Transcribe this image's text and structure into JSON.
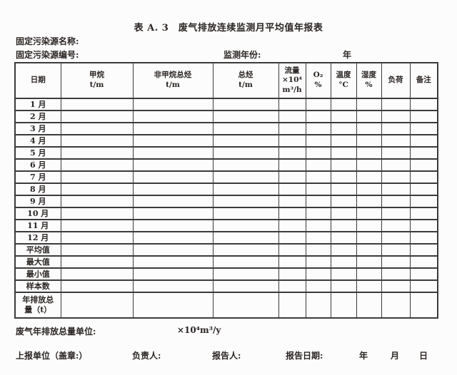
{
  "title": "表 A. 3　废气排放连续监测月平均值年报表",
  "meta": {
    "source_name_label": "固定污染源名称:",
    "source_code_label": "固定污染源编号:",
    "monitor_year_label": "监测年份:",
    "year_unit": "年"
  },
  "table": {
    "header": [
      "日期",
      "甲烷\nt/m",
      "非甲烷总烃\nt/m",
      "总烃\nt/m",
      "流量\n×10⁴\nm³/h",
      "O₂\n%",
      "温度\n°C",
      "湿度\n%",
      "负荷",
      "备注"
    ],
    "row_labels": [
      "1 月",
      "2 月",
      "3 月",
      "4 月",
      "5 月",
      "6 月",
      "7 月",
      "8 月",
      "9 月",
      "10 月",
      "11 月",
      "12 月",
      "平均值",
      "最大值",
      "最小值",
      "样本数",
      "年排放总\n量（t）"
    ],
    "empty_cols": 9
  },
  "footer": {
    "total_unit_label": "废气年排放总量单位:",
    "total_unit_value": "×10⁴m³/y",
    "report_unit_label": "上报单位（盖章:）",
    "responsible_label": "负责人:",
    "reporter_label": "报告人:",
    "report_date_label": "报告日期:",
    "date_year": "年",
    "date_month": "月",
    "date_day": "日"
  }
}
